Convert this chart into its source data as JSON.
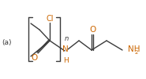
{
  "label_a": "(a)",
  "label_Cl": "Cl",
  "label_n": "n",
  "label_O1": "O",
  "label_O2": "O",
  "label_N": "N",
  "label_H": "H",
  "bg_color": "#ffffff",
  "bond_color": "#3a3a3a",
  "heteroatom_color": "#cc6600",
  "line_width": 1.0,
  "fig_width": 1.85,
  "fig_height": 1.01,
  "dpi": 100
}
